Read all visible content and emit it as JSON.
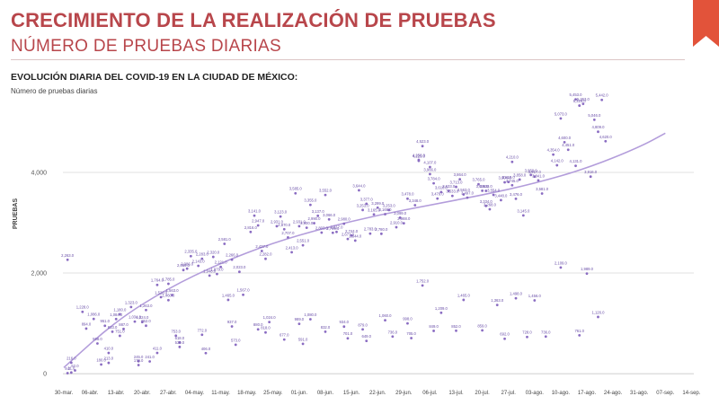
{
  "header": {
    "title": "CRECIMIENTO DE LA REALIZACIÓN DE PRUEBAS",
    "subtitle": "NÚMERO DE PRUEBAS DIARIAS",
    "accent_color": "#b8464b",
    "corner_color": "#e2533a"
  },
  "chart_data": {
    "type": "scatter",
    "title": "EVOLUCIÓN DIARIA DEL COVID-19 EN LA CIUDAD DE MÉXICO:",
    "subtitle": "Número de pruebas diarias",
    "ylabel": "PRUEBAS",
    "xlabel": "",
    "ylim": [
      0,
      4700
    ],
    "yticks": [
      "0",
      "2,000",
      "4,000"
    ],
    "ytick_values": [
      0,
      2000,
      4000
    ],
    "grid": true,
    "trendline": true,
    "point_color": "#8a6cc2",
    "trend_color": "#b39ddb",
    "xticks": [
      "30-mar.",
      "06-abr.",
      "13-abr.",
      "20-abr.",
      "27-abr.",
      "04-may.",
      "11-may.",
      "18-may.",
      "25-may.",
      "01-jun.",
      "08-jun.",
      "15-jun.",
      "22-jun.",
      "29-jun.",
      "06-jul.",
      "13-jul.",
      "20-jul.",
      "27-jul.",
      "03-ago.",
      "10-ago.",
      "17-ago.",
      "24-ago.",
      "31-ago.",
      "07-sep.",
      "14-sep."
    ],
    "trend": [
      {
        "day": 0,
        "y": 120
      },
      {
        "day": 14,
        "y": 1050
      },
      {
        "day": 28,
        "y": 1700
      },
      {
        "day": 42,
        "y": 2200
      },
      {
        "day": 56,
        "y": 2600
      },
      {
        "day": 70,
        "y": 2900
      },
      {
        "day": 84,
        "y": 3150
      },
      {
        "day": 98,
        "y": 3350
      },
      {
        "day": 112,
        "y": 3550
      },
      {
        "day": 126,
        "y": 3780
      },
      {
        "day": 140,
        "y": 4080
      },
      {
        "day": 154,
        "y": 4500
      },
      {
        "day": 161,
        "y": 4780
      }
    ],
    "points": [
      {
        "day": 1,
        "y": 9,
        "label": "9.0"
      },
      {
        "day": 2,
        "y": 21,
        "label": "21.0"
      },
      {
        "day": 1,
        "y": 2263,
        "label": "2,263.0"
      },
      {
        "day": 2,
        "y": 216,
        "label": "216.0"
      },
      {
        "day": 3,
        "y": 62,
        "label": "62.0"
      },
      {
        "day": 5,
        "y": 1228,
        "label": "1,228.0"
      },
      {
        "day": 6,
        "y": 894,
        "label": "894.0"
      },
      {
        "day": 8,
        "y": 1086,
        "label": "1,086.0"
      },
      {
        "day": 9,
        "y": 598,
        "label": "598.0"
      },
      {
        "day": 10,
        "y": 180,
        "label": "180.0"
      },
      {
        "day": 11,
        "y": 951,
        "label": "951.0"
      },
      {
        "day": 12,
        "y": 410,
        "label": "410.0"
      },
      {
        "day": 12,
        "y": 213,
        "label": "213.0"
      },
      {
        "day": 13,
        "y": 833,
        "label": "833.0"
      },
      {
        "day": 14,
        "y": 1084,
        "label": "1,084.0"
      },
      {
        "day": 15,
        "y": 1180,
        "label": "1,180.0"
      },
      {
        "day": 15,
        "y": 751,
        "label": "751.0"
      },
      {
        "day": 16,
        "y": 887,
        "label": "887.0"
      },
      {
        "day": 18,
        "y": 1323,
        "label": "1,323.0"
      },
      {
        "day": 19,
        "y": 1034,
        "label": "1,034.0"
      },
      {
        "day": 20,
        "y": 245,
        "label": "245.0"
      },
      {
        "day": 20,
        "y": 170,
        "label": "170.0"
      },
      {
        "day": 21,
        "y": 1024,
        "label": "1,024.0"
      },
      {
        "day": 22,
        "y": 1263,
        "label": "1,263.0"
      },
      {
        "day": 22,
        "y": 952,
        "label": "952.0"
      },
      {
        "day": 23,
        "y": 241,
        "label": "241.0"
      },
      {
        "day": 25,
        "y": 1764,
        "label": "1,764.0"
      },
      {
        "day": 25,
        "y": 411,
        "label": "411.0"
      },
      {
        "day": 26,
        "y": 1520,
        "label": "1,520.0"
      },
      {
        "day": 28,
        "y": 1785,
        "label": "1,785.0"
      },
      {
        "day": 28,
        "y": 1460,
        "label": "1,460.0"
      },
      {
        "day": 29,
        "y": 1563,
        "label": "1,563.0"
      },
      {
        "day": 30,
        "y": 753,
        "label": "753.0"
      },
      {
        "day": 31,
        "y": 618,
        "label": "618.0"
      },
      {
        "day": 31,
        "y": 530,
        "label": "530.0"
      },
      {
        "day": 32,
        "y": 2059,
        "label": "2,059.0"
      },
      {
        "day": 33,
        "y": 2086,
        "label": "2,086.0"
      },
      {
        "day": 34,
        "y": 2335,
        "label": "2,335.0"
      },
      {
        "day": 36,
        "y": 2143,
        "label": "2,143.0"
      },
      {
        "day": 37,
        "y": 2283,
        "label": "2,283.0"
      },
      {
        "day": 37,
        "y": 772,
        "label": "772.0"
      },
      {
        "day": 38,
        "y": 406,
        "label": "406.0"
      },
      {
        "day": 39,
        "y": 1948,
        "label": "1,948.0"
      },
      {
        "day": 40,
        "y": 2320,
        "label": "2,320.0"
      },
      {
        "day": 41,
        "y": 1979,
        "label": "1,979.0"
      },
      {
        "day": 42,
        "y": 2121,
        "label": "2,121.0"
      },
      {
        "day": 43,
        "y": 2581,
        "label": "2,581.0"
      },
      {
        "day": 44,
        "y": 1465,
        "label": "1,465.0"
      },
      {
        "day": 45,
        "y": 2266,
        "label": "2,266.0"
      },
      {
        "day": 45,
        "y": 937,
        "label": "937.0"
      },
      {
        "day": 46,
        "y": 573,
        "label": "573.0"
      },
      {
        "day": 47,
        "y": 2023,
        "label": "2,023.0"
      },
      {
        "day": 48,
        "y": 1567,
        "label": "1,567.0"
      },
      {
        "day": 50,
        "y": 2816,
        "label": "2,816.0"
      },
      {
        "day": 51,
        "y": 3141,
        "label": "3,141.0"
      },
      {
        "day": 52,
        "y": 2947,
        "label": "2,947.0"
      },
      {
        "day": 52,
        "y": 880,
        "label": "880.0"
      },
      {
        "day": 53,
        "y": 2437,
        "label": "2,437.0"
      },
      {
        "day": 54,
        "y": 2282,
        "label": "2,282.0"
      },
      {
        "day": 54,
        "y": 818,
        "label": "818.0"
      },
      {
        "day": 55,
        "y": 1024,
        "label": "1,024.0"
      },
      {
        "day": 57,
        "y": 2931,
        "label": "2,931.0"
      },
      {
        "day": 58,
        "y": 3123,
        "label": "3,123.0"
      },
      {
        "day": 59,
        "y": 2870,
        "label": "2,870.0"
      },
      {
        "day": 59,
        "y": 677,
        "label": "677.0"
      },
      {
        "day": 60,
        "y": 2707,
        "label": "2,707.0"
      },
      {
        "day": 61,
        "y": 2413,
        "label": "2,413.0"
      },
      {
        "day": 62,
        "y": 3585,
        "label": "3,585.0"
      },
      {
        "day": 63,
        "y": 2931,
        "label": "2,931.0"
      },
      {
        "day": 63,
        "y": 989,
        "label": "989.0"
      },
      {
        "day": 64,
        "y": 2551,
        "label": "2,551.0"
      },
      {
        "day": 64,
        "y": 591,
        "label": "591.0"
      },
      {
        "day": 65,
        "y": 2900,
        "label": "2,900.0"
      },
      {
        "day": 66,
        "y": 3355,
        "label": "3,355.0"
      },
      {
        "day": 66,
        "y": 1080,
        "label": "1,080.0"
      },
      {
        "day": 67,
        "y": 2990,
        "label": "2,990.0"
      },
      {
        "day": 68,
        "y": 3137,
        "label": "3,137.0"
      },
      {
        "day": 69,
        "y": 2803,
        "label": "2,803.0"
      },
      {
        "day": 70,
        "y": 3552,
        "label": "3,552.0"
      },
      {
        "day": 70,
        "y": 832,
        "label": "832.0"
      },
      {
        "day": 71,
        "y": 3066,
        "label": "3,066.0"
      },
      {
        "day": 72,
        "y": 2799,
        "label": "2,799.0"
      },
      {
        "day": 73,
        "y": 2817,
        "label": "2,817.0"
      },
      {
        "day": 75,
        "y": 2980,
        "label": "2,980.0"
      },
      {
        "day": 75,
        "y": 934,
        "label": "934.0"
      },
      {
        "day": 76,
        "y": 2677,
        "label": "2,677.0"
      },
      {
        "day": 76,
        "y": 701,
        "label": "701.0"
      },
      {
        "day": 77,
        "y": 2744,
        "label": "2,744.0"
      },
      {
        "day": 78,
        "y": 2644,
        "label": "2,644.0"
      },
      {
        "day": 79,
        "y": 3644,
        "label": "3,644.0"
      },
      {
        "day": 80,
        "y": 3253,
        "label": "3,253.0"
      },
      {
        "day": 80,
        "y": 879,
        "label": "879.0"
      },
      {
        "day": 81,
        "y": 3377,
        "label": "3,377.0"
      },
      {
        "day": 81,
        "y": 649,
        "label": "649.0"
      },
      {
        "day": 82,
        "y": 2783,
        "label": "2,783.0"
      },
      {
        "day": 83,
        "y": 3165,
        "label": "3,165.0"
      },
      {
        "day": 84,
        "y": 3299,
        "label": "3,299.0"
      },
      {
        "day": 85,
        "y": 2780,
        "label": "2,780.0"
      },
      {
        "day": 86,
        "y": 3169,
        "label": "3,169.0"
      },
      {
        "day": 86,
        "y": 1060,
        "label": "1,060.0"
      },
      {
        "day": 87,
        "y": 3253,
        "label": "3,253.0"
      },
      {
        "day": 88,
        "y": 736,
        "label": "736.0"
      },
      {
        "day": 89,
        "y": 2910,
        "label": "2,910.0"
      },
      {
        "day": 90,
        "y": 3099,
        "label": "3,099.0"
      },
      {
        "day": 91,
        "y": 2988,
        "label": "2,988.0"
      },
      {
        "day": 92,
        "y": 3478,
        "label": "3,478.0"
      },
      {
        "day": 92,
        "y": 998,
        "label": "998.0"
      },
      {
        "day": 93,
        "y": 705,
        "label": "705.0"
      },
      {
        "day": 94,
        "y": 3348,
        "label": "3,348.0"
      },
      {
        "day": 95,
        "y": 4229,
        "label": "4,229.0"
      },
      {
        "day": 95,
        "y": 4250,
        "label": "4,250.0"
      },
      {
        "day": 96,
        "y": 4523,
        "label": "4,523.0"
      },
      {
        "day": 96,
        "y": 1752,
        "label": "1,752.0"
      },
      {
        "day": 98,
        "y": 3966,
        "label": "3,966.0"
      },
      {
        "day": 98,
        "y": 4107,
        "label": "4,107.0"
      },
      {
        "day": 99,
        "y": 3784,
        "label": "3,784.0"
      },
      {
        "day": 99,
        "y": 849,
        "label": "849.0"
      },
      {
        "day": 100,
        "y": 3479,
        "label": "3,479.0"
      },
      {
        "day": 101,
        "y": 3610,
        "label": "3,610.0"
      },
      {
        "day": 101,
        "y": 1209,
        "label": "1,209.0"
      },
      {
        "day": 103,
        "y": 3633,
        "label": "3,633.0"
      },
      {
        "day": 104,
        "y": 3533,
        "label": "3,533.0"
      },
      {
        "day": 105,
        "y": 3713,
        "label": "3,713.0"
      },
      {
        "day": 105,
        "y": 852,
        "label": "852.0"
      },
      {
        "day": 106,
        "y": 3864,
        "label": "3,864.0"
      },
      {
        "day": 107,
        "y": 3563,
        "label": "3,563.0"
      },
      {
        "day": 107,
        "y": 1465,
        "label": "1,465.0"
      },
      {
        "day": 108,
        "y": 3497,
        "label": "3,497.0"
      },
      {
        "day": 111,
        "y": 3765,
        "label": "3,765.0"
      },
      {
        "day": 112,
        "y": 3636,
        "label": "3,636.0"
      },
      {
        "day": 112,
        "y": 859,
        "label": "859.0"
      },
      {
        "day": 113,
        "y": 3634,
        "label": "3,634.0"
      },
      {
        "day": 113,
        "y": 3334,
        "label": "3,334.0"
      },
      {
        "day": 114,
        "y": 3268,
        "label": "3,268.0"
      },
      {
        "day": 115,
        "y": 3554,
        "label": "3,554.0"
      },
      {
        "day": 116,
        "y": 1363,
        "label": "1,363.0"
      },
      {
        "day": 117,
        "y": 3448,
        "label": "3,448.0"
      },
      {
        "day": 118,
        "y": 3804,
        "label": "3,804.0"
      },
      {
        "day": 118,
        "y": 692,
        "label": "692.0"
      },
      {
        "day": 119,
        "y": 3810,
        "label": "3,810.0"
      },
      {
        "day": 120,
        "y": 4210,
        "label": "4,210.0"
      },
      {
        "day": 120,
        "y": 3745,
        "label": "3,745.0"
      },
      {
        "day": 121,
        "y": 3476,
        "label": "3,476.0"
      },
      {
        "day": 121,
        "y": 1498,
        "label": "1,498.0"
      },
      {
        "day": 122,
        "y": 3858,
        "label": "3,858.0"
      },
      {
        "day": 123,
        "y": 3145,
        "label": "3,145.0"
      },
      {
        "day": 124,
        "y": 728,
        "label": "728.0"
      },
      {
        "day": 125,
        "y": 3950,
        "label": "3,950.0"
      },
      {
        "day": 126,
        "y": 3917,
        "label": "3,917.0"
      },
      {
        "day": 126,
        "y": 1456,
        "label": "1,456.0"
      },
      {
        "day": 127,
        "y": 3841,
        "label": "3,841.0"
      },
      {
        "day": 128,
        "y": 3581,
        "label": "3,581.0"
      },
      {
        "day": 129,
        "y": 736,
        "label": "736.0"
      },
      {
        "day": 131,
        "y": 4354,
        "label": "4,354.0"
      },
      {
        "day": 132,
        "y": 4142,
        "label": "4,142.0"
      },
      {
        "day": 133,
        "y": 5073,
        "label": "5,073.0"
      },
      {
        "day": 133,
        "y": 2109,
        "label": "2,109.0"
      },
      {
        "day": 134,
        "y": 4600,
        "label": "4,600.0"
      },
      {
        "day": 135,
        "y": 4451,
        "label": "4,451.0"
      },
      {
        "day": 137,
        "y": 4131,
        "label": "4,131.0"
      },
      {
        "day": 137,
        "y": 5453,
        "label": "5,453.0"
      },
      {
        "day": 138,
        "y": 5329,
        "label": "5,329.0"
      },
      {
        "day": 138,
        "y": 761,
        "label": "761.0"
      },
      {
        "day": 139,
        "y": 5363,
        "label": "5,363.0"
      },
      {
        "day": 140,
        "y": 1989,
        "label": "1,989.0"
      },
      {
        "day": 141,
        "y": 3916,
        "label": "3,916.0"
      },
      {
        "day": 142,
        "y": 5046,
        "label": "5,046.0"
      },
      {
        "day": 143,
        "y": 4809,
        "label": "4,809.0"
      },
      {
        "day": 143,
        "y": 1126,
        "label": "1,126.0"
      },
      {
        "day": 144,
        "y": 5442,
        "label": "5,442.0"
      },
      {
        "day": 145,
        "y": 4620,
        "label": "4,620.0"
      }
    ]
  }
}
